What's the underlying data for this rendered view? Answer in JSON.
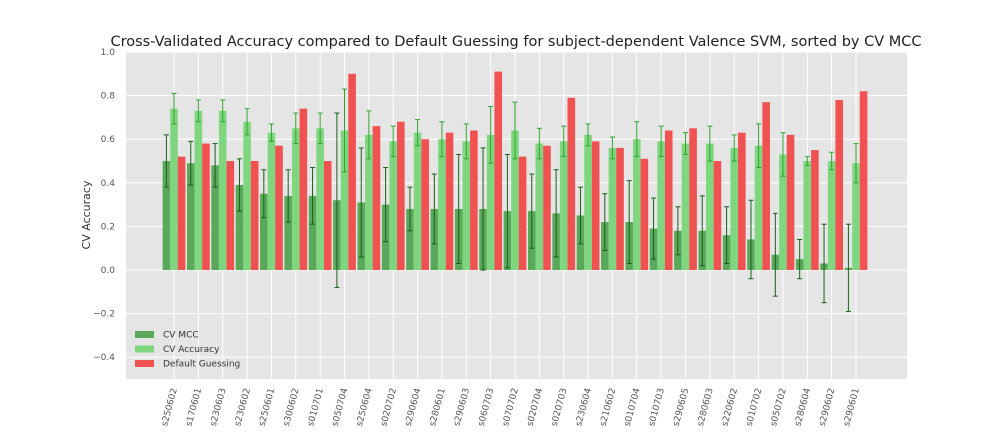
{
  "chart_data": {
    "type": "bar",
    "title": "Cross-Validated Accuracy compared to Default Guessing  for subject-dependent Valence SVM, sorted by CV MCC",
    "xlabel": "",
    "ylabel": "CV Accuracy",
    "ylim": [
      -0.5,
      1.0
    ],
    "yticks": [
      "−0.4",
      "−0.2",
      "0.0",
      "0.2",
      "0.4",
      "0.6",
      "0.8",
      "1.0"
    ],
    "ytick_values": [
      -0.4,
      -0.2,
      0.0,
      0.2,
      0.4,
      0.6,
      0.8,
      1.0
    ],
    "grid": true,
    "legend_position": "lower-left",
    "categories": [
      "s250602",
      "s170601",
      "s230603",
      "s230602",
      "s250601",
      "s300602",
      "s010701",
      "s050704",
      "s250604",
      "s020702",
      "s290604",
      "s280601",
      "s290603",
      "s060703",
      "s070702",
      "s020704",
      "s020703",
      "s230604",
      "s210602",
      "s010704",
      "s010703",
      "s290605",
      "s280603",
      "s220602",
      "s010702",
      "s050702",
      "s280604",
      "s290602",
      "s290601"
    ],
    "series": [
      {
        "name": "CV MCC",
        "color": "#5aa85a",
        "values": [
          0.5,
          0.49,
          0.48,
          0.39,
          0.35,
          0.34,
          0.34,
          0.32,
          0.31,
          0.3,
          0.28,
          0.28,
          0.28,
          0.28,
          0.27,
          0.27,
          0.26,
          0.25,
          0.22,
          0.22,
          0.19,
          0.18,
          0.18,
          0.16,
          0.14,
          0.07,
          0.05,
          0.03,
          0.01
        ],
        "errors": [
          0.12,
          0.1,
          0.1,
          0.12,
          0.11,
          0.12,
          0.13,
          0.4,
          0.25,
          0.17,
          0.1,
          0.16,
          0.25,
          0.28,
          0.26,
          0.17,
          0.2,
          0.13,
          0.13,
          0.19,
          0.14,
          0.11,
          0.16,
          0.13,
          0.18,
          0.19,
          0.09,
          0.18,
          0.2
        ]
      },
      {
        "name": "CV Accuracy",
        "color": "#7fd67f",
        "values": [
          0.74,
          0.73,
          0.73,
          0.68,
          0.63,
          0.65,
          0.65,
          0.64,
          0.62,
          0.59,
          0.63,
          0.6,
          0.59,
          0.62,
          0.64,
          0.58,
          0.59,
          0.62,
          0.56,
          0.6,
          0.59,
          0.58,
          0.58,
          0.56,
          0.57,
          0.53,
          0.5,
          0.5,
          0.49
        ],
        "errors": [
          0.07,
          0.05,
          0.05,
          0.06,
          0.04,
          0.07,
          0.07,
          0.19,
          0.11,
          0.07,
          0.06,
          0.08,
          0.08,
          0.13,
          0.13,
          0.07,
          0.07,
          0.05,
          0.05,
          0.08,
          0.07,
          0.05,
          0.08,
          0.06,
          0.1,
          0.1,
          0.02,
          0.04,
          0.09
        ]
      },
      {
        "name": "Default Guessing",
        "color": "#f05252",
        "values": [
          0.52,
          0.58,
          0.5,
          0.5,
          0.57,
          0.74,
          0.5,
          0.9,
          0.66,
          0.68,
          0.6,
          0.63,
          0.64,
          0.91,
          0.52,
          0.57,
          0.79,
          0.59,
          0.56,
          0.51,
          0.64,
          0.65,
          0.5,
          0.63,
          0.77,
          0.62,
          0.55,
          0.78,
          0.82
        ]
      }
    ]
  }
}
